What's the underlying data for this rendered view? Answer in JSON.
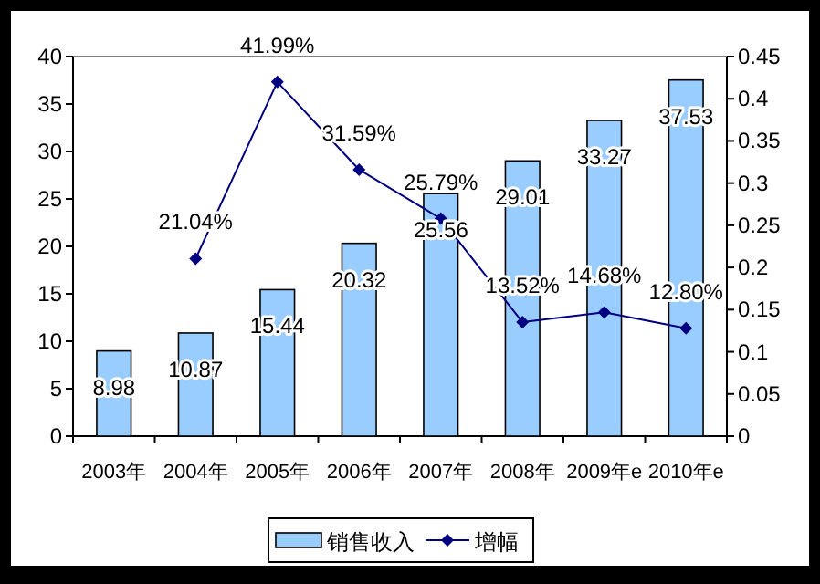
{
  "chart_data": {
    "type": "bar",
    "categories": [
      "2003年",
      "2004年",
      "2005年",
      "2006年",
      "2007年",
      "2008年",
      "2009年e",
      "2010年e"
    ],
    "series": [
      {
        "name": "销售收入",
        "color": "#99ccff",
        "values": [
          8.98,
          10.87,
          15.44,
          20.32,
          25.56,
          29.01,
          33.27,
          37.53
        ],
        "value_labels": [
          "8.98",
          "10.87",
          "15.44",
          "20.32",
          "25.56",
          "29.01",
          "33.27",
          "37.53"
        ]
      },
      {
        "name": "增幅",
        "type": "line",
        "axis": "y2",
        "color": "#000080",
        "marker": "diamond",
        "values": [
          null,
          0.2104,
          0.4199,
          0.3159,
          0.2579,
          0.1352,
          0.1468,
          0.128
        ],
        "value_labels": [
          null,
          "21.04%",
          "41.99%",
          "31.59%",
          "25.79%",
          "13.52%",
          "14.68%",
          "12.80%"
        ]
      }
    ],
    "ylim": [
      0,
      40
    ],
    "yticks": [
      0,
      5,
      10,
      15,
      20,
      25,
      30,
      35,
      40
    ],
    "y2lim": [
      0,
      0.45
    ],
    "y2ticks": [
      0,
      0.05,
      0.1,
      0.15,
      0.2,
      0.25,
      0.3,
      0.35,
      0.4,
      0.45
    ],
    "legend": "bottom",
    "grid": false
  }
}
